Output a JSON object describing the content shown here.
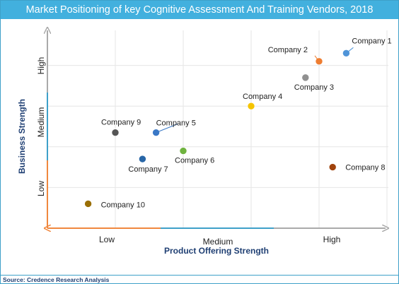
{
  "title": "Market Positioning of key Cognitive Assessment And Training Vendors, 2018",
  "source": "Source: Credence Research Analysis",
  "chart_data": {
    "type": "scatter",
    "xlabel": "Product Offering Strength",
    "ylabel": "Business Strength",
    "x_ticks": [
      "Low",
      "Medium",
      "High"
    ],
    "y_ticks": [
      "Low",
      "Medium",
      "High"
    ],
    "xlim": [
      0,
      100
    ],
    "ylim": [
      0,
      100
    ],
    "grid": true,
    "points": [
      {
        "label": "Company 1",
        "x": 88,
        "y": 86,
        "color": "#4f94d8"
      },
      {
        "label": "Company 2",
        "x": 80,
        "y": 82,
        "color": "#ee7d31"
      },
      {
        "label": "Company 3",
        "x": 76,
        "y": 74,
        "color": "#909090"
      },
      {
        "label": "Company 4",
        "x": 60,
        "y": 60,
        "color": "#f5c400"
      },
      {
        "label": "Company 5",
        "x": 32,
        "y": 47,
        "color": "#3a78c6"
      },
      {
        "label": "Company 6",
        "x": 40,
        "y": 38,
        "color": "#6fb33f"
      },
      {
        "label": "Company 7",
        "x": 28,
        "y": 34,
        "color": "#2866a7"
      },
      {
        "label": "Company 8",
        "x": 84,
        "y": 30,
        "color": "#a0430c"
      },
      {
        "label": "Company 9",
        "x": 20,
        "y": 47,
        "color": "#555555"
      },
      {
        "label": "Company 10",
        "x": 12,
        "y": 12,
        "color": "#9a6f05"
      }
    ]
  }
}
